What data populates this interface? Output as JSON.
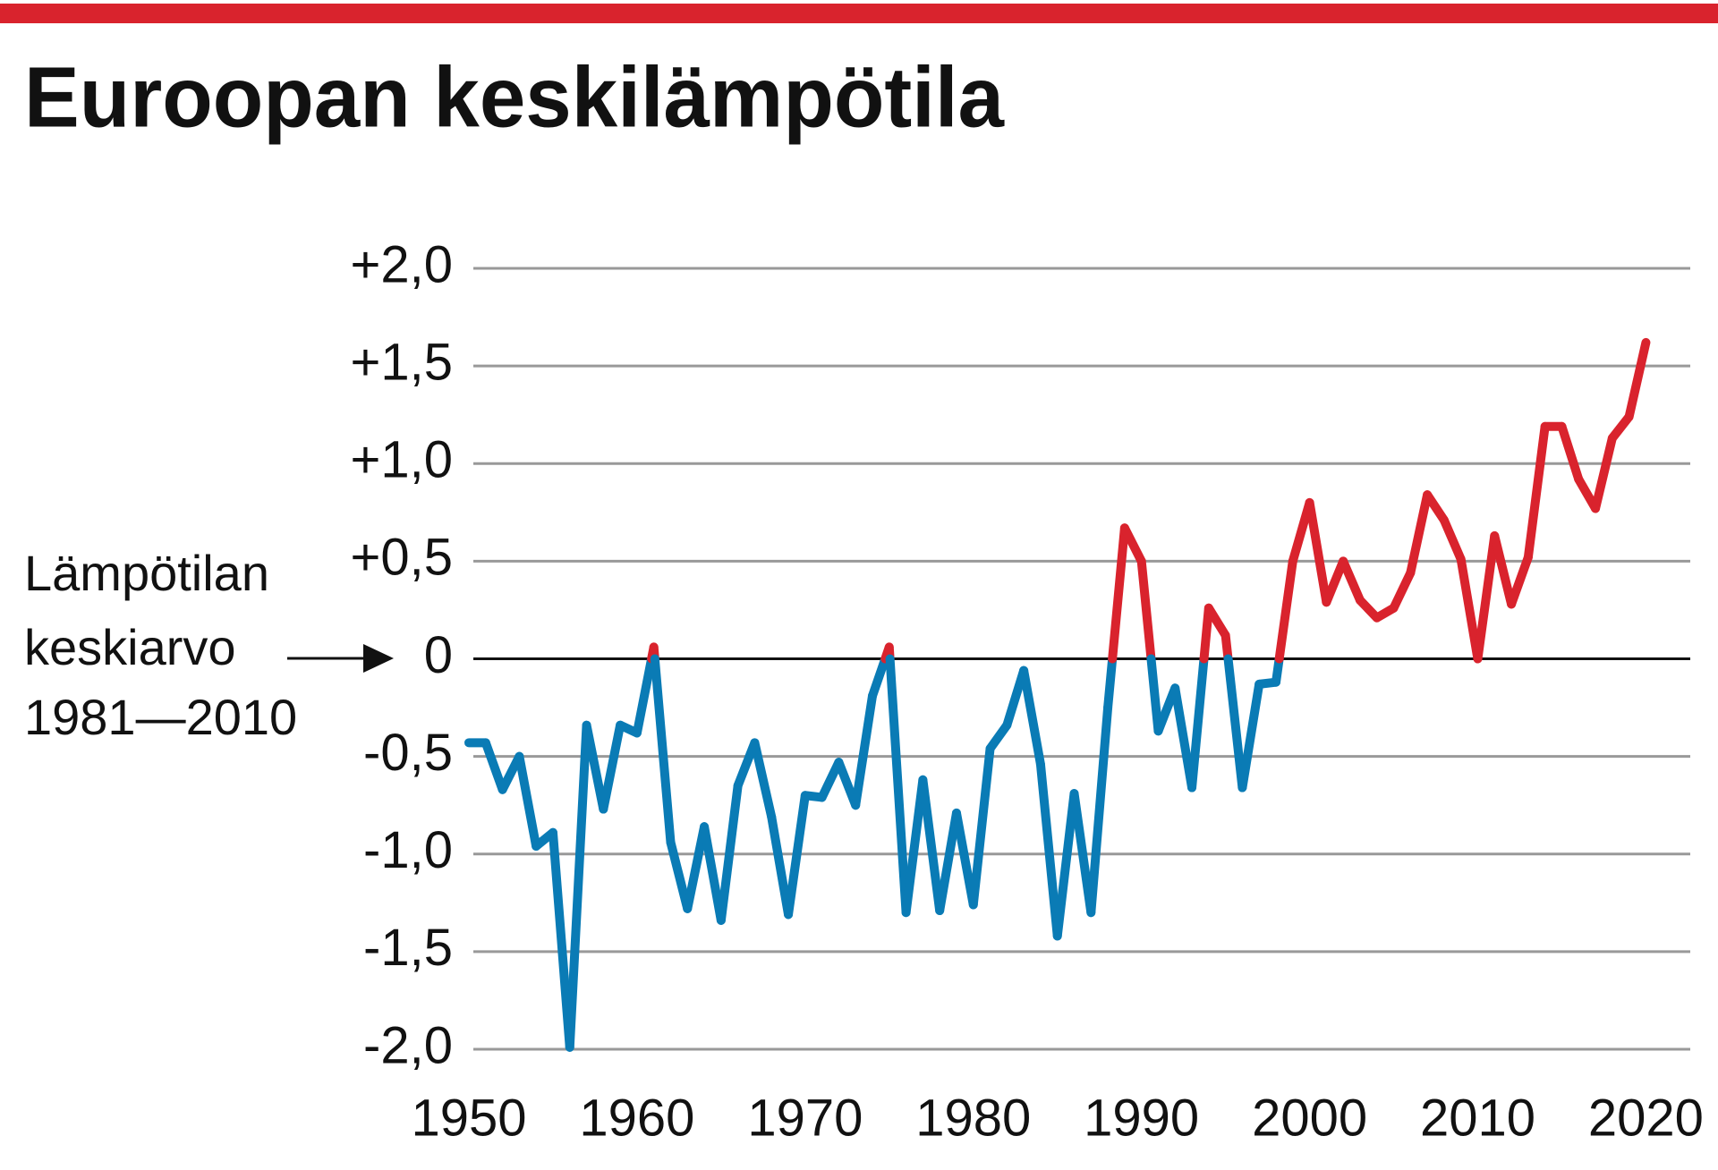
{
  "chart_data": {
    "type": "line",
    "title": "Euroopan keskilämpötila",
    "annotation": [
      "Lämpötilan",
      "keskiarvo",
      "1981—2010"
    ],
    "x": [
      1950,
      1951,
      1952,
      1953,
      1954,
      1955,
      1956,
      1957,
      1958,
      1959,
      1960,
      1961,
      1962,
      1963,
      1964,
      1965,
      1966,
      1967,
      1968,
      1969,
      1970,
      1971,
      1972,
      1973,
      1974,
      1975,
      1976,
      1977,
      1978,
      1979,
      1980,
      1981,
      1982,
      1983,
      1984,
      1985,
      1986,
      1987,
      1988,
      1989,
      1990,
      1991,
      1992,
      1993,
      1994,
      1995,
      1996,
      1997,
      1998,
      1999,
      2000,
      2001,
      2002,
      2003,
      2004,
      2005,
      2006,
      2007,
      2008,
      2009,
      2010,
      2011,
      2012,
      2013,
      2014,
      2015,
      2016,
      2017,
      2018,
      2019,
      2020
    ],
    "series": [
      {
        "colors": {
          "above": "#d9232d",
          "below": "#0a7bb5"
        },
        "values": [
          -0.43,
          -0.43,
          -0.67,
          -0.5,
          -0.96,
          -0.89,
          -1.99,
          -0.34,
          -0.77,
          -0.34,
          -0.38,
          0.06,
          -0.94,
          -1.28,
          -0.86,
          -1.34,
          -0.65,
          -0.43,
          -0.81,
          -1.31,
          -0.7,
          -0.71,
          -0.53,
          -0.75,
          -0.19,
          0.06,
          -1.3,
          -0.62,
          -1.29,
          -0.79,
          -1.26,
          -0.46,
          -0.34,
          -0.06,
          -0.54,
          -1.42,
          -0.69,
          -1.3,
          -0.25,
          0.67,
          0.5,
          -0.37,
          -0.15,
          -0.66,
          0.26,
          0.12,
          -0.66,
          -0.13,
          -0.12,
          0.5,
          0.8,
          0.29,
          0.5,
          0.3,
          0.21,
          0.26,
          0.44,
          0.84,
          0.71,
          0.51,
          0.0,
          0.63,
          0.28,
          0.52,
          1.19,
          1.19,
          0.92,
          0.77,
          1.13,
          1.24,
          1.62
        ]
      }
    ],
    "xlim": [
      1950,
      2022
    ],
    "xticks": [
      1950,
      1960,
      1970,
      1980,
      1990,
      2000,
      2010,
      2020
    ],
    "ylim": [
      -2,
      2
    ],
    "yticks": [
      {
        "value": -2,
        "label": "-2,0"
      },
      {
        "value": -1.5,
        "label": "-1,5"
      },
      {
        "value": -1,
        "label": "-1,0"
      },
      {
        "value": -0.5,
        "label": "-0,5"
      },
      0,
      {
        "value": 0.5,
        "label": "+0,5"
      },
      {
        "value": 1,
        "label": "+1,0"
      },
      {
        "value": 1.5,
        "label": "+1,5"
      },
      {
        "value": 2,
        "label": "+2,0"
      }
    ],
    "grid": true
  }
}
